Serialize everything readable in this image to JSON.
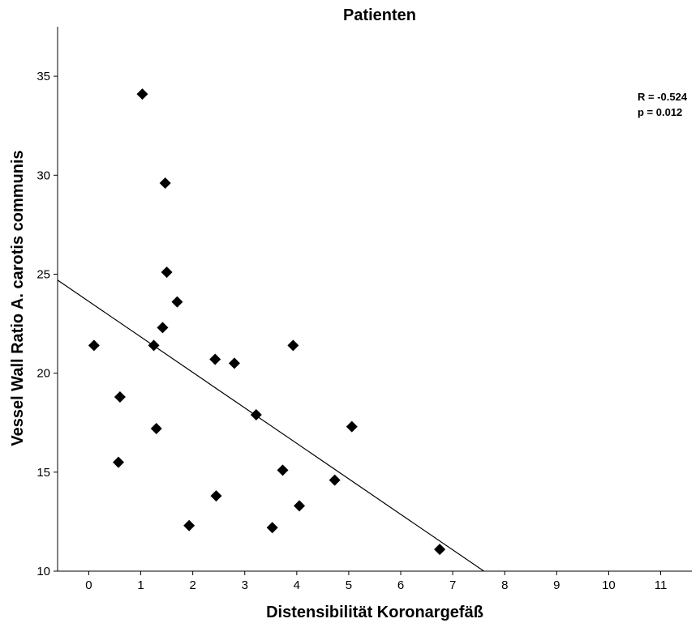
{
  "chart_data": {
    "type": "scatter",
    "title": "Patienten",
    "xlabel": "Distensibilität Koronargefäß",
    "ylabel": "Vessel Wall Ratio A. carotis communis",
    "xlim": [
      -0.6,
      11.6
    ],
    "ylim": [
      10,
      37.5
    ],
    "xticks": [
      0,
      1,
      2,
      3,
      4,
      5,
      6,
      7,
      8,
      9,
      10,
      11
    ],
    "yticks": [
      10,
      15,
      20,
      25,
      30,
      35
    ],
    "xtick_labels": [
      "0",
      "1",
      "2",
      "3",
      "4",
      "5",
      "6",
      "7",
      "8",
      "9",
      "10",
      "11"
    ],
    "ytick_labels": [
      "10",
      "15",
      "20",
      "25",
      "30",
      "35"
    ],
    "grid": false,
    "points": [
      {
        "x": 0.1,
        "y": 21.4
      },
      {
        "x": 0.57,
        "y": 15.5
      },
      {
        "x": 0.6,
        "y": 18.8
      },
      {
        "x": 1.03,
        "y": 34.1
      },
      {
        "x": 1.25,
        "y": 21.4
      },
      {
        "x": 1.3,
        "y": 17.2
      },
      {
        "x": 1.42,
        "y": 22.3
      },
      {
        "x": 1.47,
        "y": 29.6
      },
      {
        "x": 1.5,
        "y": 25.1
      },
      {
        "x": 1.7,
        "y": 23.6
      },
      {
        "x": 1.93,
        "y": 12.3
      },
      {
        "x": 2.43,
        "y": 20.7
      },
      {
        "x": 2.45,
        "y": 13.8
      },
      {
        "x": 2.8,
        "y": 20.5
      },
      {
        "x": 3.22,
        "y": 17.9
      },
      {
        "x": 3.53,
        "y": 12.2
      },
      {
        "x": 3.73,
        "y": 15.1
      },
      {
        "x": 3.93,
        "y": 21.4
      },
      {
        "x": 4.05,
        "y": 13.3
      },
      {
        "x": 4.73,
        "y": 14.6
      },
      {
        "x": 5.06,
        "y": 17.3
      },
      {
        "x": 6.75,
        "y": 11.1
      }
    ],
    "fit_line": {
      "x": [
        -0.6,
        7.6
      ],
      "y": [
        24.7,
        10.0
      ]
    },
    "annotations": [
      "R = -0.524",
      "p = 0.012"
    ]
  }
}
